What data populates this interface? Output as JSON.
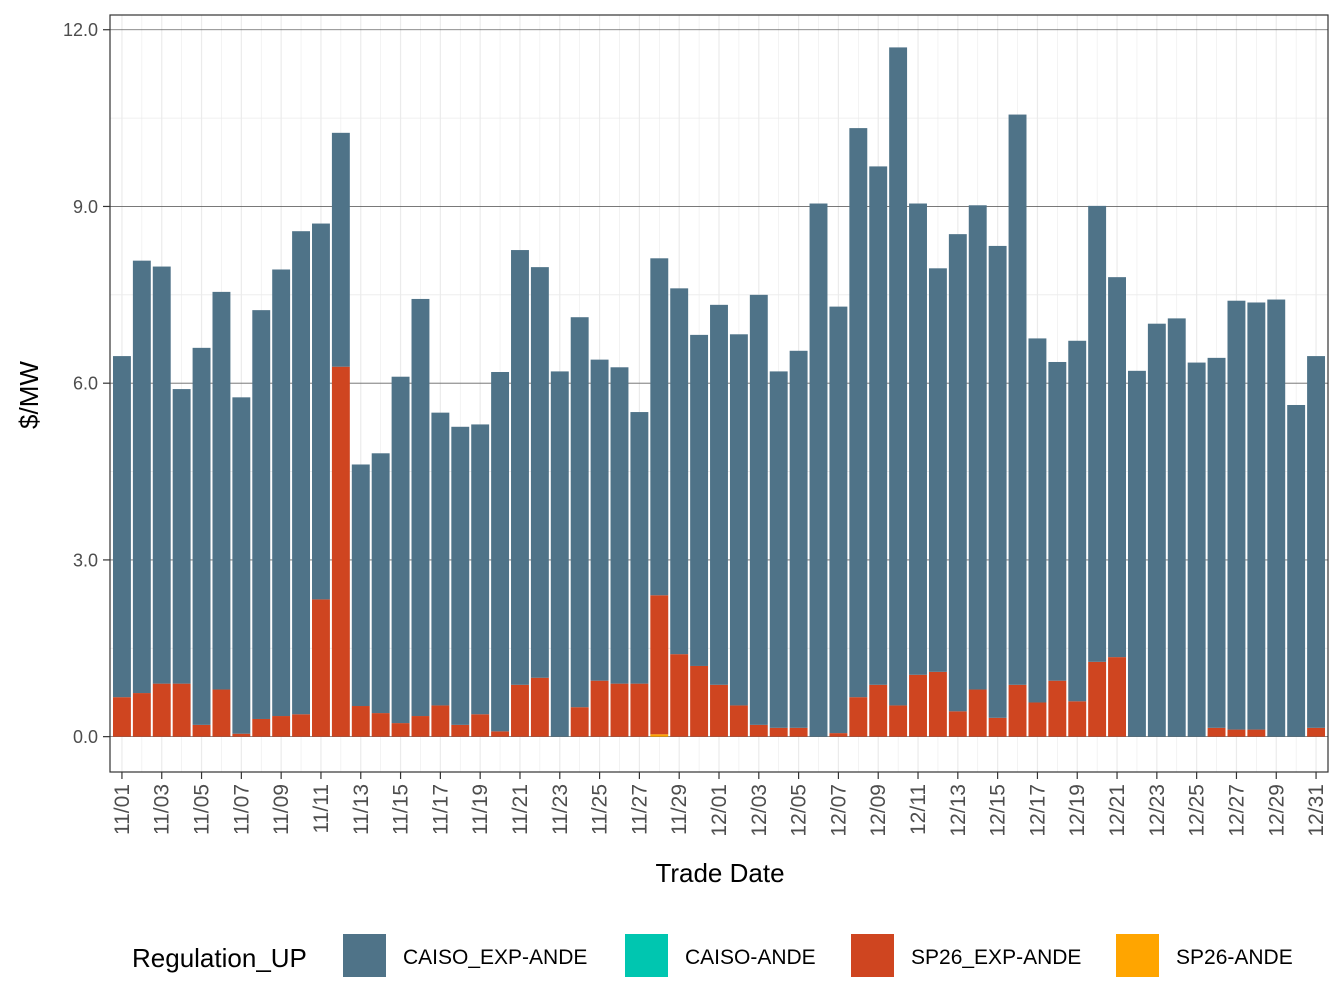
{
  "chart_data": {
    "type": "bar",
    "stacked": true,
    "title": "",
    "xlabel": "Trade Date",
    "ylabel": "$/MW",
    "ylim": [
      -0.6,
      12.25
    ],
    "yticks": [
      "0.0",
      "3.0",
      "6.0",
      "9.0",
      "12.0"
    ],
    "ytick_values": [
      0,
      3,
      6,
      9,
      12
    ],
    "grid": true,
    "legend_position": "bottom",
    "legend_title": "Regulation_UP",
    "categories": [
      "11/01",
      "11/02",
      "11/03",
      "11/04",
      "11/05",
      "11/06",
      "11/07",
      "11/08",
      "11/09",
      "11/10",
      "11/11",
      "11/12",
      "11/13",
      "11/14",
      "11/15",
      "11/16",
      "11/17",
      "11/18",
      "11/19",
      "11/20",
      "11/21",
      "11/22",
      "11/23",
      "11/24",
      "11/25",
      "11/26",
      "11/27",
      "11/28",
      "11/29",
      "11/30",
      "12/01",
      "12/02",
      "12/03",
      "12/04",
      "12/05",
      "12/06",
      "12/07",
      "12/08",
      "12/09",
      "12/10",
      "12/11",
      "12/12",
      "12/13",
      "12/14",
      "12/15",
      "12/16",
      "12/17",
      "12/18",
      "12/19",
      "12/20",
      "12/21",
      "12/22",
      "12/23",
      "12/24",
      "12/25",
      "12/26",
      "12/27",
      "12/28",
      "12/29",
      "12/30",
      "12/31"
    ],
    "xtick_labels": [
      "11/01",
      "11/03",
      "11/05",
      "11/07",
      "11/09",
      "11/11",
      "11/13",
      "11/15",
      "11/17",
      "11/19",
      "11/21",
      "11/23",
      "11/25",
      "11/27",
      "11/29",
      "12/01",
      "12/03",
      "12/05",
      "12/07",
      "12/09",
      "12/11",
      "12/13",
      "12/15",
      "12/17",
      "12/19",
      "12/21",
      "12/23",
      "12/25",
      "12/27",
      "12/29",
      "12/31"
    ],
    "series": [
      {
        "name": "SP26-ANDE",
        "color": "#FFA500",
        "values": [
          0,
          0,
          0,
          0,
          0,
          0,
          0,
          0,
          0,
          0,
          0,
          0,
          0,
          0,
          0,
          0,
          0,
          0,
          0,
          0,
          0,
          0,
          0,
          0,
          0,
          0,
          0,
          0.04,
          0,
          0,
          0,
          0,
          0,
          0,
          0,
          0,
          0,
          0,
          0,
          0,
          0,
          0,
          0,
          0,
          0,
          0,
          0,
          0,
          0,
          0,
          0,
          0,
          0,
          0,
          0,
          0,
          0,
          0,
          0,
          0,
          0
        ]
      },
      {
        "name": "SP26_EXP-ANDE",
        "color": "#CF4520",
        "values": [
          0.67,
          0.74,
          0.9,
          0.9,
          0.2,
          0.8,
          0.05,
          0.3,
          0.35,
          0.38,
          2.33,
          6.28,
          0.52,
          0.4,
          0.23,
          0.35,
          0.53,
          0.2,
          0.38,
          0.09,
          0.88,
          1.0,
          0,
          0.5,
          0.95,
          0.9,
          0.9,
          2.36,
          1.4,
          1.2,
          0.88,
          0.53,
          0.2,
          0.15,
          0.15,
          0,
          0.06,
          0.67,
          0.88,
          0.53,
          1.05,
          1.1,
          0.43,
          0.8,
          0.32,
          0.88,
          0.58,
          0.95,
          0.6,
          1.27,
          1.35,
          0,
          0,
          0,
          0,
          0.15,
          0.12,
          0.12,
          0,
          0,
          0.15
        ]
      },
      {
        "name": "CAISO-ANDE",
        "color": "#00C6B0",
        "values": [
          0,
          0,
          0,
          0,
          0,
          0,
          0,
          0,
          0,
          0,
          0,
          0,
          0,
          0,
          0,
          0,
          0,
          0,
          0,
          0,
          0,
          0,
          0,
          0,
          0,
          0,
          0,
          0,
          0,
          0,
          0,
          0,
          0,
          0,
          0,
          0,
          0,
          0,
          0,
          0,
          0,
          0,
          0,
          0,
          0,
          0,
          0,
          0,
          0,
          0,
          0,
          0,
          0,
          0,
          0,
          0,
          0,
          0,
          0,
          0,
          0
        ]
      },
      {
        "name": "CAISO_EXP-ANDE",
        "color": "#4F7388",
        "values": [
          5.79,
          7.34,
          7.08,
          5.0,
          6.4,
          6.75,
          5.71,
          6.94,
          7.58,
          8.2,
          6.38,
          3.97,
          4.1,
          4.41,
          5.88,
          7.08,
          4.97,
          5.06,
          4.92,
          6.1,
          7.38,
          6.97,
          6.2,
          6.62,
          5.45,
          5.37,
          4.61,
          5.72,
          6.21,
          5.62,
          6.45,
          6.3,
          7.3,
          6.05,
          6.4,
          9.05,
          7.24,
          9.66,
          8.8,
          11.17,
          8.0,
          6.85,
          8.1,
          8.22,
          8.01,
          9.68,
          6.18,
          5.41,
          6.12,
          7.74,
          6.45,
          6.21,
          7.01,
          7.1,
          6.35,
          6.28,
          7.28,
          7.25,
          7.42,
          5.63,
          6.31
        ]
      }
    ],
    "legend_order": [
      "CAISO_EXP-ANDE",
      "CAISO-ANDE",
      "SP26_EXP-ANDE",
      "SP26-ANDE"
    ]
  }
}
